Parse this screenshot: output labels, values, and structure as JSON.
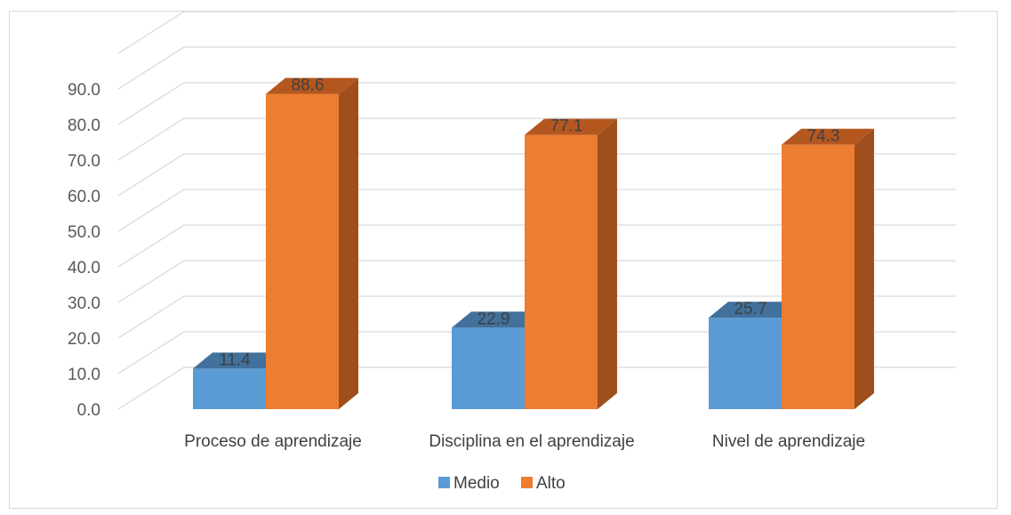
{
  "chart_data": {
    "type": "bar",
    "categories": [
      "Proceso de aprendizaje",
      "Disciplina en el aprendizaje",
      "Nivel de aprendizaje"
    ],
    "series": [
      {
        "name": "Medio",
        "values": [
          11.4,
          22.9,
          25.7
        ],
        "labels": [
          "11.4",
          "22.9",
          "25.7"
        ]
      },
      {
        "name": "Alto",
        "values": [
          88.6,
          77.1,
          74.3
        ],
        "labels": [
          "88.6",
          "77.1",
          "74.3"
        ]
      }
    ],
    "y_ticks": [
      0,
      10,
      20,
      30,
      40,
      50,
      60,
      70,
      80,
      90,
      100
    ],
    "y_tick_labels": [
      "0.0",
      "10.0",
      "20.0",
      "30.0",
      "40.0",
      "50.0",
      "60.0",
      "70.0",
      "80.0",
      "90.0",
      ""
    ],
    "ylim": [
      0,
      100
    ],
    "legend_position": "bottom",
    "grid": true,
    "style": "3d-clustered-column",
    "colors": {
      "Medio": {
        "front": "#5b9bd5",
        "side": "#41719c",
        "top": "#41719c"
      },
      "Alto": {
        "front": "#ed7d31",
        "side": "#9e4f1c",
        "top": "#b4571f"
      },
      "grid": "#d9d9d9"
    }
  }
}
